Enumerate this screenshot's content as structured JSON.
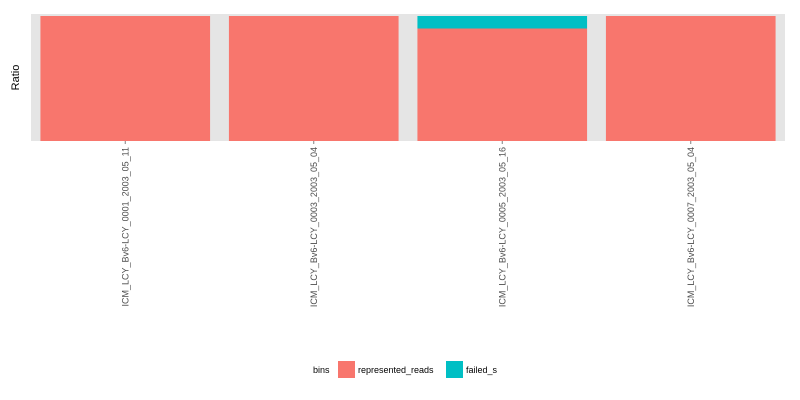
{
  "chart_data": {
    "type": "bar",
    "stacked": true,
    "normalized": true,
    "title": "",
    "xlabel": "",
    "ylabel": "Ratio",
    "ylim": [
      0,
      1
    ],
    "y_tick_labels_shown": false,
    "grid": false,
    "background_color": "#e5e5e5",
    "categories": [
      "ICM_LCY_Bv6-LCY_0001_2003_05_11",
      "ICM_LCY_Bv6-LCY_0003_2003_05_04",
      "ICM_LCY_Bv6-LCY_0005_2003_05_16",
      "ICM_LCY_Bv6-LCY_0007_2003_05_04"
    ],
    "series": [
      {
        "name": "represented_reads",
        "color": "#f8766d",
        "values": [
          1.0,
          1.0,
          0.9,
          1.0
        ]
      },
      {
        "name": "failed_s",
        "color": "#00bfc4",
        "values": [
          0.0,
          0.0,
          0.1,
          0.0
        ]
      }
    ],
    "legend": {
      "title": "bins",
      "position": "bottom"
    }
  }
}
